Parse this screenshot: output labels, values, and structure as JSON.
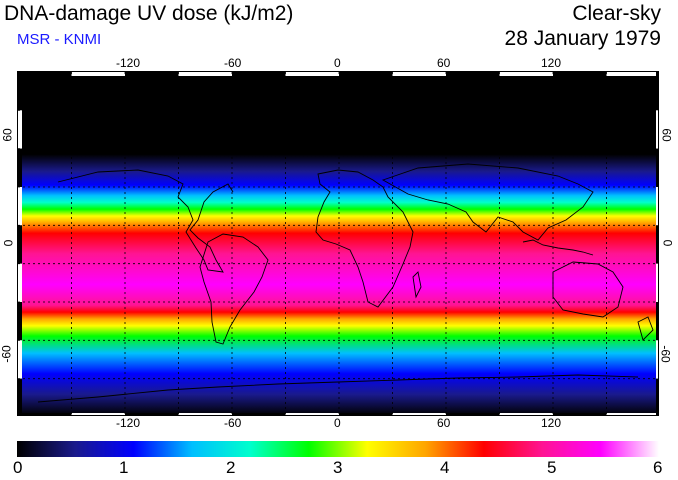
{
  "header": {
    "title": "DNA-damage UV dose (kJ/m2)",
    "subtitle": "MSR - KNMI",
    "subtitle_color": "#1a1aff",
    "condition": "Clear-sky",
    "date": "28 January 1979"
  },
  "map": {
    "projection": "equirectangular",
    "lon_range": [
      -180,
      180
    ],
    "lat_range": [
      -90,
      90
    ],
    "lon_ticks": [
      "-120",
      "-60",
      "0",
      "60",
      "120"
    ],
    "lat_ticks": [
      "60",
      "0",
      "-60"
    ],
    "gridlines": "dashed, every 20 degrees"
  },
  "legend": {
    "labels": [
      "0",
      "1",
      "2",
      "3",
      "4",
      "5",
      "6"
    ],
    "colors": [
      "#000000",
      "#1a1a8c",
      "#0000ff",
      "#00bfff",
      "#00ffcc",
      "#00ff00",
      "#ffff00",
      "#ffa500",
      "#ff0000",
      "#ff1493",
      "#ff00ff",
      "#ffffff"
    ]
  }
}
